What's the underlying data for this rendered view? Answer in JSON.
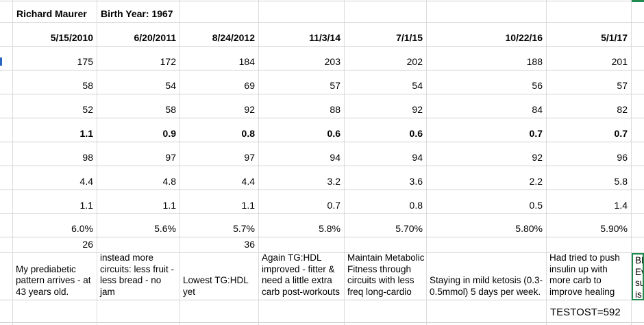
{
  "sheet": {
    "patient_name": "Richard Maurer",
    "birth_year": "Birth Year: 1967",
    "dates": [
      "5/15/2010",
      "6/20/2011",
      "8/24/2012",
      "11/3/14",
      "7/1/15",
      "10/22/16",
      "5/1/17"
    ],
    "metric_rows": [
      {
        "values": [
          "175",
          "172",
          "184",
          "203",
          "202",
          "188",
          "201"
        ],
        "bold": false
      },
      {
        "values": [
          "58",
          "54",
          "69",
          "57",
          "54",
          "56",
          "57"
        ],
        "bold": false
      },
      {
        "values": [
          "52",
          "58",
          "92",
          "88",
          "92",
          "84",
          "82"
        ],
        "bold": false
      },
      {
        "values": [
          "1.1",
          "0.9",
          "0.8",
          "0.6",
          "0.6",
          "0.7",
          "0.7"
        ],
        "bold": true
      },
      {
        "values": [
          "98",
          "97",
          "97",
          "94",
          "94",
          "92",
          "96"
        ],
        "bold": false
      },
      {
        "values": [
          "4.4",
          "4.8",
          "4.4",
          "3.2",
          "3.6",
          "2.2",
          "5.8"
        ],
        "bold": false
      },
      {
        "values": [
          "1.1",
          "1.1",
          "1.1",
          "0.7",
          "0.8",
          "0.5",
          "1.4"
        ],
        "bold": false
      },
      {
        "values": [
          "6.0%",
          "5.6%",
          "5.7%",
          "5.8%",
          "5.70%",
          "5.80%",
          "5.90%"
        ],
        "bold": false
      },
      {
        "values": [
          "26",
          "",
          "36",
          "",
          "",
          "",
          ""
        ],
        "bold": false
      }
    ],
    "notes": [
      "My prediabetic\npattern arrives - at\n43 years old.",
      "Reduced jogging,\ninstead more\ncircuits: less fruit -\nless bread - no jam",
      "Lowest TG:HDL yet",
      "Again TG:HDL\nimproved - fitter &\nneed a little extra\ncarb post-workouts",
      "Maintain Metabolic\nFitness through\ncircuits with less\nfreq long-cardio",
      "Staying in mild ketosis (0.3-\n0.5mmol) 5 days per week.",
      "Had tried to push\ninsulin up with\nmore carb to\nimprove healing"
    ],
    "clipped_selected_note": "BE\nEv\nsur\nis l",
    "testosterone": "TESTOST=592"
  },
  "colors": {
    "selection": "#1f8b4e",
    "fragment": "#2a65c2"
  }
}
